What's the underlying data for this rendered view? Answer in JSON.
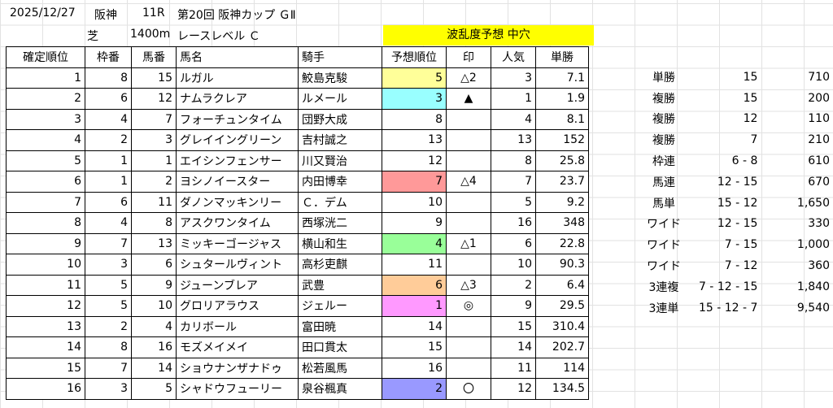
{
  "header": {
    "date": "2025/12/27",
    "venue": "阪神",
    "race_no": "11R",
    "race_name": "第20回 阪神カップ ＧⅡ",
    "surface": "芝",
    "distance": "1400m",
    "race_level": "レースレベル Ｃ"
  },
  "banner": "波乱度予想 中穴",
  "columns": [
    "確定順位",
    "枠番",
    "馬番",
    "馬名",
    "騎手",
    "予想順位",
    "印",
    "人気",
    "単勝"
  ],
  "rows": [
    {
      "rank": "1",
      "waku": "8",
      "uma": "15",
      "horse": "ルガル",
      "jockey": "鮫島克駿",
      "pred": "5",
      "mark": "△2",
      "pop": "3",
      "odds": "7.1",
      "hl": "#ffff99"
    },
    {
      "rank": "2",
      "waku": "6",
      "uma": "12",
      "horse": "ナムラクレア",
      "jockey": "ルメール",
      "pred": "3",
      "mark": "▲",
      "pop": "1",
      "odds": "1.9",
      "hl": "#99ffff"
    },
    {
      "rank": "3",
      "waku": "4",
      "uma": "7",
      "horse": "フォーチュンタイム",
      "jockey": "団野大成",
      "pred": "8",
      "mark": "",
      "pop": "4",
      "odds": "8.1",
      "hl": ""
    },
    {
      "rank": "4",
      "waku": "2",
      "uma": "3",
      "horse": "グレイイングリーン",
      "jockey": "吉村誠之",
      "pred": "13",
      "mark": "",
      "pop": "13",
      "odds": "152",
      "hl": ""
    },
    {
      "rank": "5",
      "waku": "1",
      "uma": "1",
      "horse": "エイシンフェンサー",
      "jockey": "川又賢治",
      "pred": "12",
      "mark": "",
      "pop": "8",
      "odds": "25.8",
      "hl": ""
    },
    {
      "rank": "6",
      "waku": "1",
      "uma": "2",
      "horse": "ヨシノイースター",
      "jockey": "内田博幸",
      "pred": "7",
      "mark": "△4",
      "pop": "7",
      "odds": "23.7",
      "hl": "#ff9999"
    },
    {
      "rank": "7",
      "waku": "6",
      "uma": "11",
      "horse": "ダノンマッキンリー",
      "jockey": "Ｃ．デム",
      "pred": "10",
      "mark": "",
      "pop": "5",
      "odds": "9.2",
      "hl": ""
    },
    {
      "rank": "8",
      "waku": "4",
      "uma": "8",
      "horse": "アスクワンタイム",
      "jockey": "西塚洸二",
      "pred": "9",
      "mark": "",
      "pop": "16",
      "odds": "348",
      "hl": ""
    },
    {
      "rank": "9",
      "waku": "7",
      "uma": "13",
      "horse": "ミッキーゴージャス",
      "jockey": "横山和生",
      "pred": "4",
      "mark": "△1",
      "pop": "6",
      "odds": "22.8",
      "hl": "#99ff99"
    },
    {
      "rank": "10",
      "waku": "3",
      "uma": "6",
      "horse": "シュタールヴィント",
      "jockey": "高杉吏麒",
      "pred": "11",
      "mark": "",
      "pop": "10",
      "odds": "90.3",
      "hl": ""
    },
    {
      "rank": "11",
      "waku": "5",
      "uma": "9",
      "horse": "ジューンブレア",
      "jockey": "武豊",
      "pred": "6",
      "mark": "△3",
      "pop": "2",
      "odds": "6.4",
      "hl": "#ffcc99"
    },
    {
      "rank": "12",
      "waku": "5",
      "uma": "10",
      "horse": "グロリアラウス",
      "jockey": "ジェルー",
      "pred": "1",
      "mark": "◎",
      "pop": "9",
      "odds": "29.5",
      "hl": "#ff99ff"
    },
    {
      "rank": "13",
      "waku": "2",
      "uma": "4",
      "horse": "カリボール",
      "jockey": "富田暁",
      "pred": "14",
      "mark": "",
      "pop": "15",
      "odds": "310.4",
      "hl": ""
    },
    {
      "rank": "14",
      "waku": "8",
      "uma": "16",
      "horse": "モズメイメイ",
      "jockey": "田口貫太",
      "pred": "15",
      "mark": "",
      "pop": "14",
      "odds": "202.7",
      "hl": ""
    },
    {
      "rank": "15",
      "waku": "7",
      "uma": "14",
      "horse": "ショウナンザナドゥ",
      "jockey": "松若風馬",
      "pred": "16",
      "mark": "",
      "pop": "11",
      "odds": "114",
      "hl": ""
    },
    {
      "rank": "16",
      "waku": "3",
      "uma": "5",
      "horse": "シャドウフューリー",
      "jockey": "泉谷楓真",
      "pred": "2",
      "mark": "〇",
      "pop": "12",
      "odds": "134.5",
      "hl": "#9999ff"
    }
  ],
  "payouts": [
    {
      "type": "単勝",
      "combo": "15",
      "amount": "710"
    },
    {
      "type": "複勝",
      "combo": "15",
      "amount": "200"
    },
    {
      "type": "複勝",
      "combo": "12",
      "amount": "110"
    },
    {
      "type": "複勝",
      "combo": "7",
      "amount": "210"
    },
    {
      "type": "枠連",
      "combo": "6 - 8",
      "amount": "610"
    },
    {
      "type": "馬連",
      "combo": "12 - 15",
      "amount": "670"
    },
    {
      "type": "馬単",
      "combo": "15 - 12",
      "amount": "1,650"
    },
    {
      "type": "ワイド",
      "combo": "12 - 15",
      "amount": "330"
    },
    {
      "type": "ワイド",
      "combo": "7 - 15",
      "amount": "1,000"
    },
    {
      "type": "ワイド",
      "combo": "7 - 12",
      "amount": "360"
    },
    {
      "type": "3連複",
      "combo": "7 - 12 - 15",
      "amount": "1,840"
    },
    {
      "type": "3連単",
      "combo": "15 - 12 - 7",
      "amount": "9,540"
    }
  ]
}
